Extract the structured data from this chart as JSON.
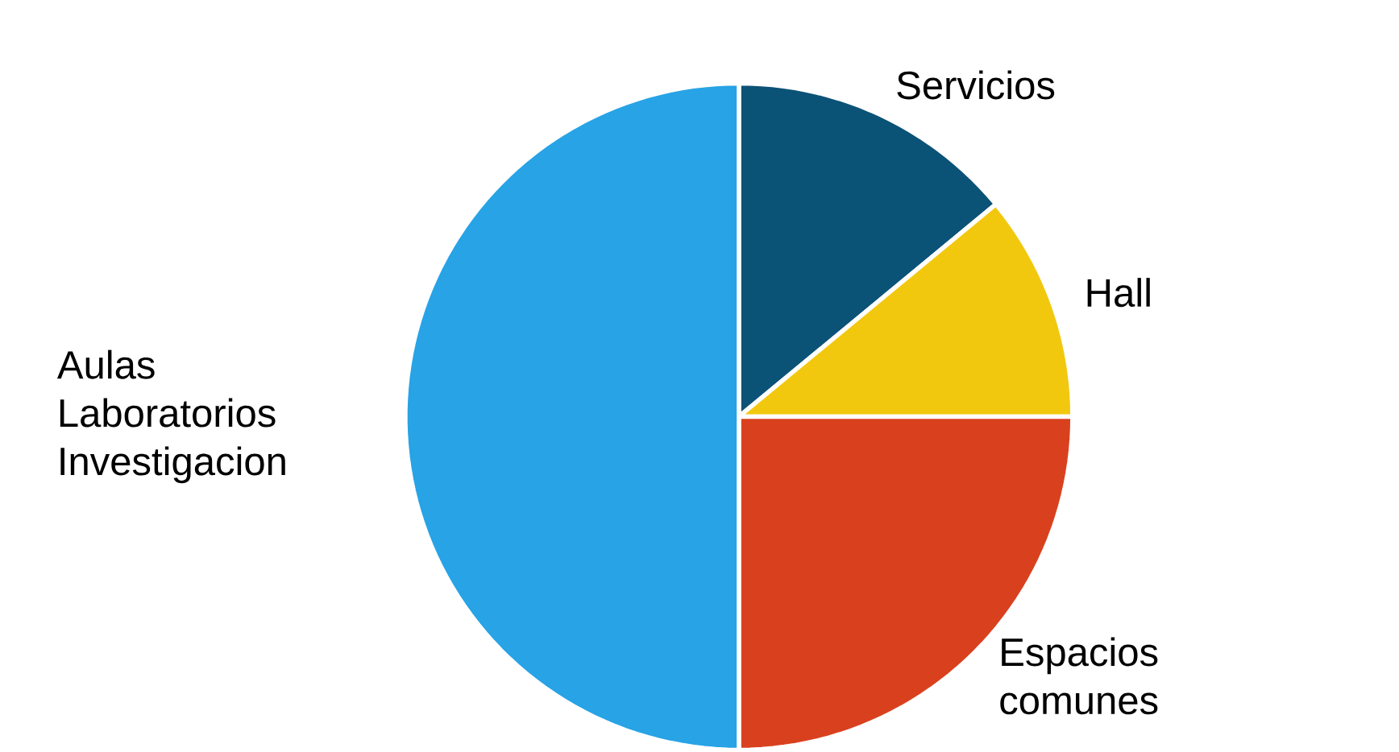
{
  "chart_data": {
    "type": "pie",
    "categories": [
      "Servicios",
      "Hall",
      "Espacios comunes",
      "Aulas Laboratorios Investigacion"
    ],
    "values": [
      14,
      11,
      25,
      50
    ],
    "colors": [
      "#0b5277",
      "#f2c80f",
      "#d9411e",
      "#27a3e6"
    ]
  }
}
